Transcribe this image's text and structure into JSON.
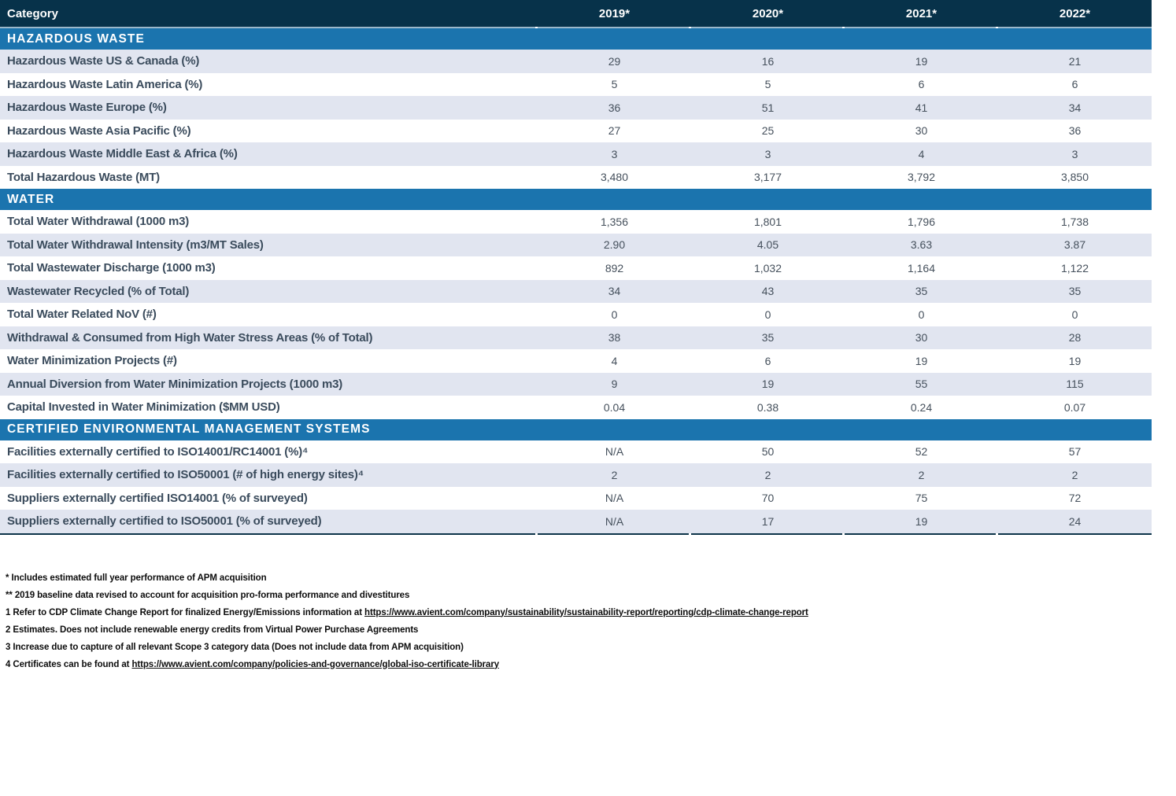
{
  "table": {
    "header": {
      "category_label": "Category",
      "years": [
        "2019*",
        "2020*",
        "2021*",
        "2022*"
      ]
    },
    "sections": [
      {
        "title": "HAZARDOUS WASTE",
        "rows": [
          {
            "label": "Hazardous Waste US & Canada (%)",
            "values": [
              "29",
              "16",
              "19",
              "21"
            ],
            "shaded": true
          },
          {
            "label": "Hazardous Waste Latin America (%)",
            "values": [
              "5",
              "5",
              "6",
              "6"
            ],
            "shaded": false
          },
          {
            "label": "Hazardous Waste Europe (%)",
            "values": [
              "36",
              "51",
              "41",
              "34"
            ],
            "shaded": true
          },
          {
            "label": "Hazardous Waste Asia Pacific (%)",
            "values": [
              "27",
              "25",
              "30",
              "36"
            ],
            "shaded": false
          },
          {
            "label": "Hazardous Waste Middle East & Africa (%)",
            "values": [
              "3",
              "3",
              "4",
              "3"
            ],
            "shaded": true
          },
          {
            "label": "Total Hazardous Waste (MT)",
            "values": [
              "3,480",
              "3,177",
              "3,792",
              "3,850"
            ],
            "shaded": false
          }
        ]
      },
      {
        "title": "WATER",
        "rows": [
          {
            "label": "Total Water Withdrawal (1000 m3)",
            "values": [
              "1,356",
              "1,801",
              "1,796",
              "1,738"
            ],
            "shaded": false
          },
          {
            "label": "Total Water Withdrawal Intensity (m3/MT Sales)",
            "values": [
              "2.90",
              "4.05",
              "3.63",
              "3.87"
            ],
            "shaded": true
          },
          {
            "label": "Total Wastewater Discharge (1000 m3)",
            "values": [
              "892",
              "1,032",
              "1,164",
              "1,122"
            ],
            "shaded": false
          },
          {
            "label": "Wastewater Recycled (% of Total)",
            "values": [
              "34",
              "43",
              "35",
              "35"
            ],
            "shaded": true
          },
          {
            "label": "Total Water Related NoV (#)",
            "values": [
              "0",
              "0",
              "0",
              "0"
            ],
            "shaded": false
          },
          {
            "label": "Withdrawal & Consumed from High Water Stress Areas (% of Total)",
            "values": [
              "38",
              "35",
              "30",
              "28"
            ],
            "shaded": true
          },
          {
            "label": "Water Minimization Projects (#)",
            "values": [
              "4",
              "6",
              "19",
              "19"
            ],
            "shaded": false
          },
          {
            "label": "Annual Diversion from Water Minimization Projects (1000 m3)",
            "values": [
              "9",
              "19",
              "55",
              "115"
            ],
            "shaded": true
          },
          {
            "label": "Capital Invested in Water Minimization ($MM USD)",
            "values": [
              "0.04",
              "0.38",
              "0.24",
              "0.07"
            ],
            "shaded": false
          }
        ]
      },
      {
        "title": "CERTIFIED ENVIRONMENTAL MANAGEMENT SYSTEMS",
        "rows": [
          {
            "label": "Facilities externally certified to ISO14001/RC14001 (%)⁴",
            "values": [
              "N/A",
              "50",
              "52",
              "57"
            ],
            "shaded": false
          },
          {
            "label": "Facilities externally certified to ISO50001 (# of high energy sites)⁴",
            "values": [
              "2",
              "2",
              "2",
              "2"
            ],
            "shaded": true
          },
          {
            "label": "Suppliers externally certified ISO14001 (% of surveyed)",
            "values": [
              "N/A",
              "70",
              "75",
              "72"
            ],
            "shaded": false
          },
          {
            "label": "Suppliers externally certified to ISO50001 (% of surveyed)",
            "values": [
              "N/A",
              "17",
              "19",
              "24"
            ],
            "shaded": true
          }
        ]
      }
    ]
  },
  "footnotes": [
    {
      "segments": [
        {
          "text": "* Includes estimated full year performance of APM acquisition"
        }
      ]
    },
    {
      "segments": [
        {
          "text": "** 2019 baseline data revised to account for acquisition pro-forma performance and divestitures"
        }
      ]
    },
    {
      "segments": [
        {
          "text": "1 Refer to CDP Climate Change Report for finalized Energy/Emissions information at "
        },
        {
          "text": "https://www.avient.com/company/sustainability/sustainability-report/reporting/cdp-climate-change-report",
          "link": true
        }
      ]
    },
    {
      "segments": [
        {
          "text": "2 Estimates. Does not include renewable energy credits from Virtual Power Purchase Agreements"
        }
      ]
    },
    {
      "segments": [
        {
          "text": "3 Increase due to capture of all relevant Scope 3 category data (Does not include data from APM acquisition)"
        }
      ]
    },
    {
      "segments": [
        {
          "text": "4 Certificates can be found at "
        },
        {
          "text": "https://www.avient.com/company/policies-and-governance/global-iso-certificate-library",
          "link": true
        }
      ]
    }
  ],
  "colors": {
    "header_navy": "#07324a",
    "section_blue": "#1b74ae",
    "shaded_row": "#e1e5f0",
    "separator_light": "#9bb8cb",
    "table_bottom_border": "#0d3449",
    "label_text": "#3a4b5c",
    "value_text": "#45505c"
  }
}
